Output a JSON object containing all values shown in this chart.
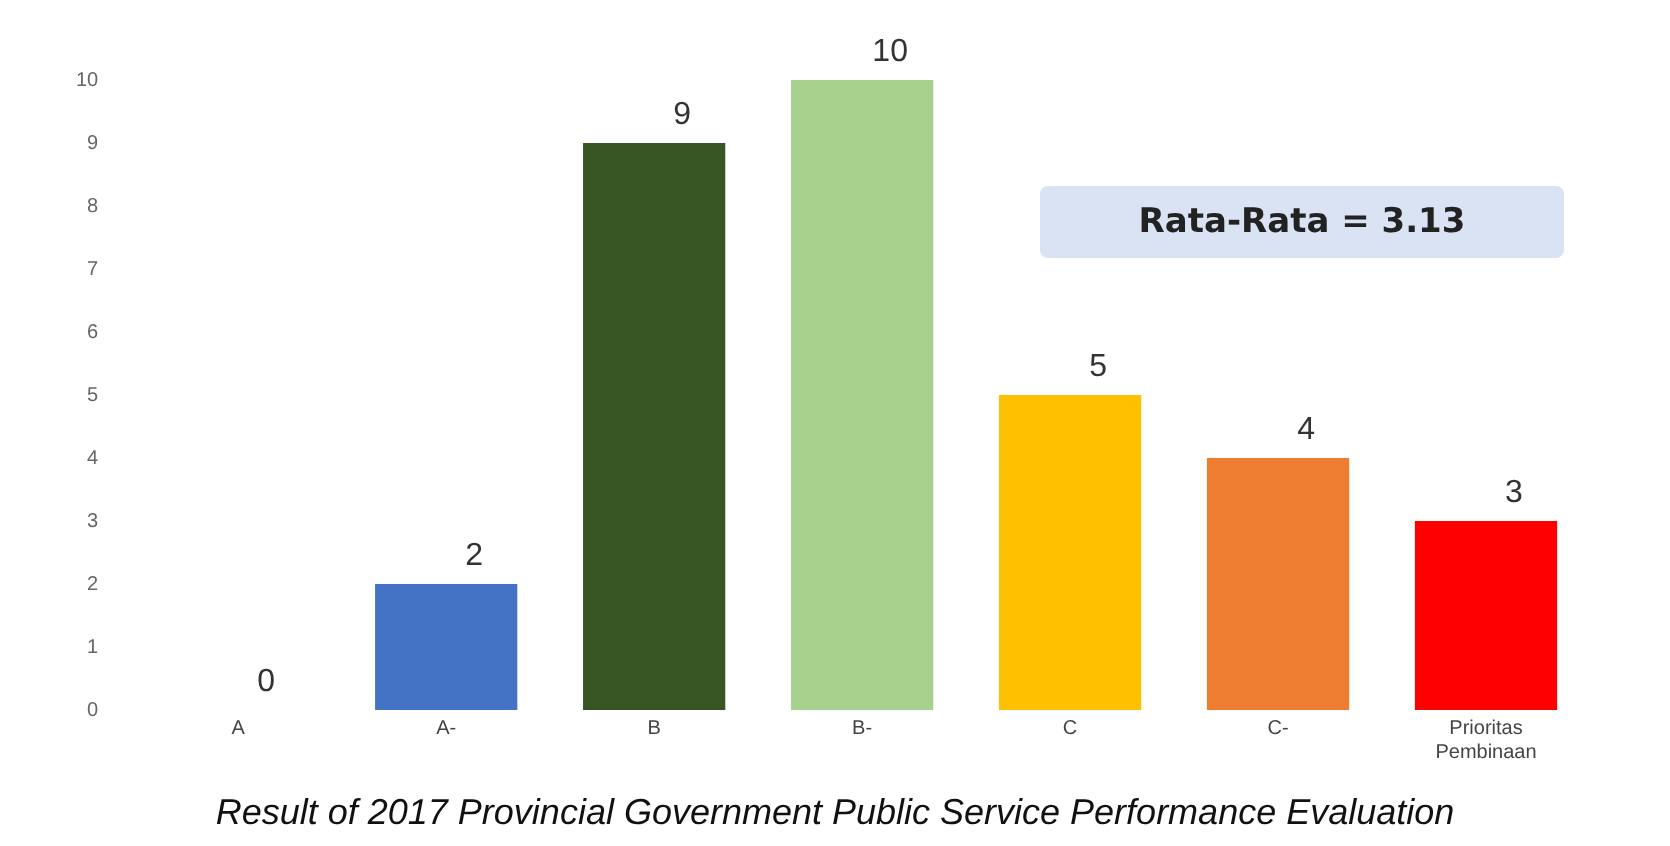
{
  "chart_data": {
    "type": "bar",
    "title": "Result of 2017 Provincial Government Public Service Performance Evaluation",
    "categories": [
      "A",
      "A-",
      "B",
      "B-",
      "C",
      "C-",
      "Prioritas Pembinaan"
    ],
    "values": [
      0,
      2,
      9,
      10,
      5,
      4,
      3
    ],
    "colors": [
      "#1f3864",
      "#4472c4",
      "#375623",
      "#a9d18e",
      "#ffc000",
      "#ed7d31",
      "#ff0000"
    ],
    "ylim": [
      0,
      10
    ],
    "yticks": [
      0,
      1,
      2,
      3,
      4,
      5,
      6,
      7,
      8,
      9,
      10
    ],
    "grid": false,
    "legend": false,
    "data_labels": true,
    "annotations": [
      "Rata-Rata = 3.13"
    ]
  }
}
